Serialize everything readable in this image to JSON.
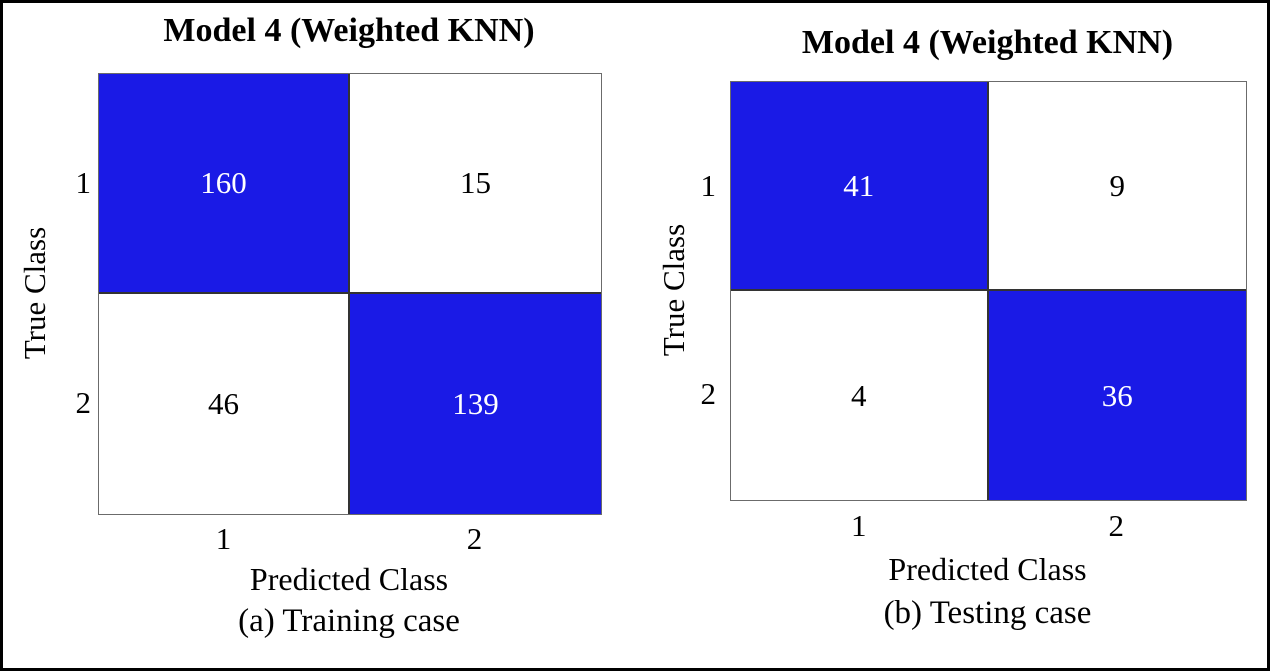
{
  "colors": {
    "diagonal_fill": "#1a1ae6",
    "off_diagonal_fill": "#ffffff",
    "diagonal_text": "#ffffff",
    "off_diagonal_text": "#000000",
    "grid_line": "#333333",
    "frame": "#000000"
  },
  "chart_data": [
    {
      "type": "heatmap",
      "title": "Model 4 (Weighted KNN)",
      "xlabel": "Predicted Class",
      "ylabel": "True Class",
      "caption": "(a) Training case",
      "x_ticks": [
        "1",
        "2"
      ],
      "y_ticks": [
        "1",
        "2"
      ],
      "matrix": [
        [
          160,
          15
        ],
        [
          46,
          139
        ]
      ],
      "highlighted_cells": "diagonal",
      "legend": "none",
      "grid": "cell-borders"
    },
    {
      "type": "heatmap",
      "title": "Model 4 (Weighted KNN)",
      "xlabel": "Predicted Class",
      "ylabel": "True Class",
      "caption": "(b) Testing case",
      "x_ticks": [
        "1",
        "2"
      ],
      "y_ticks": [
        "1",
        "2"
      ],
      "matrix": [
        [
          41,
          9
        ],
        [
          4,
          36
        ]
      ],
      "highlighted_cells": "diagonal",
      "legend": "none",
      "grid": "cell-borders"
    }
  ]
}
